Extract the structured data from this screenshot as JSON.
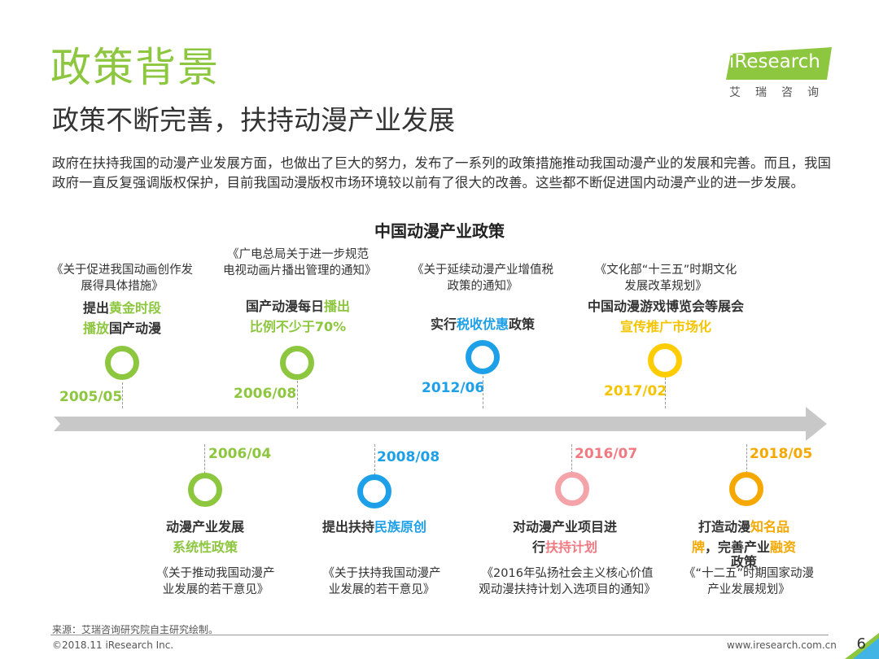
{
  "header": {
    "title": "政策背景",
    "subtitle": "政策不断完善，扶持动漫产业发展",
    "intro": "政府在扶持我国的动漫产业发展方面，也做出了巨大的努力，发布了一系列的政策措施推动我国动漫产业的发展和完善。而且，我国政府一直反复强调版权保护，目前我国动漫版权市场环境较以前有了很大的改善。这些都不断促进国内动漫产业的进一步发展。"
  },
  "logo": {
    "word": "iResearch",
    "cn": "艾瑞咨询"
  },
  "timeline": {
    "title": "中国动漫产业政策",
    "top": [
      {
        "doc": "《关于促进我国动画创作发展得具体措施》",
        "event_a": "提出",
        "event_b": "黄金时段",
        "event_c": "播放",
        "event_d": "国产动漫",
        "date": "2005/05"
      },
      {
        "doc": "《广电总局关于进一步规范电视动画片播出管理的通知》",
        "event_a": "国产动漫每日",
        "event_b": "播出",
        "event_c": "比例不少于70%",
        "date": "2006/08"
      },
      {
        "doc": "《关于延续动漫产业增值税政策的通知》",
        "event_a": "实行",
        "event_b": "税收优惠",
        "event_c": "政策",
        "date": "2012/06"
      },
      {
        "doc": "《文化部“十三五”时期文化发展改革规划》",
        "event_a": "中国动漫游戏博览会等展会",
        "event_b": "宣传推广市场化",
        "date": "2017/02"
      }
    ],
    "bottom": [
      {
        "date": "2006/04",
        "event_a": "动漫产业发展",
        "event_b": "系统性政策",
        "doc": "《关于推动我国动漫产业发展的若干意见》"
      },
      {
        "date": "2008/08",
        "event_a": "提出扶持",
        "event_b": "民族原创",
        "doc": "《关于扶持我国动漫产业发展的若干意见》"
      },
      {
        "date": "2016/07",
        "event_a": "对动漫产业项目进",
        "event_b": "行",
        "event_c": "扶持计划",
        "doc": "《2016年弘扬社会主义核心价值观动漫扶持计划入选项目的通知》"
      },
      {
        "date": "2018/05",
        "event_a": "打造动漫",
        "event_b": "知名品",
        "event_c": "牌",
        "event_d": "，完善产业",
        "event_e": "融资",
        "event_f": "政策",
        "doc": "《“十二五”时期国家动漫产业发展规划》"
      }
    ]
  },
  "footer": {
    "source": "来源：艾瑞咨询研究院自主研究绘制。",
    "copyright": "©2018.11 iResearch Inc.",
    "website": "www.iresearch.com.cn",
    "page": "6"
  },
  "colors": {
    "green": "#8dc63f",
    "blue": "#1ea0e8",
    "yellow": "#ffcc00",
    "pink": "#f07a82",
    "orange": "#f5a800",
    "arrow": "#c8c8c8"
  }
}
